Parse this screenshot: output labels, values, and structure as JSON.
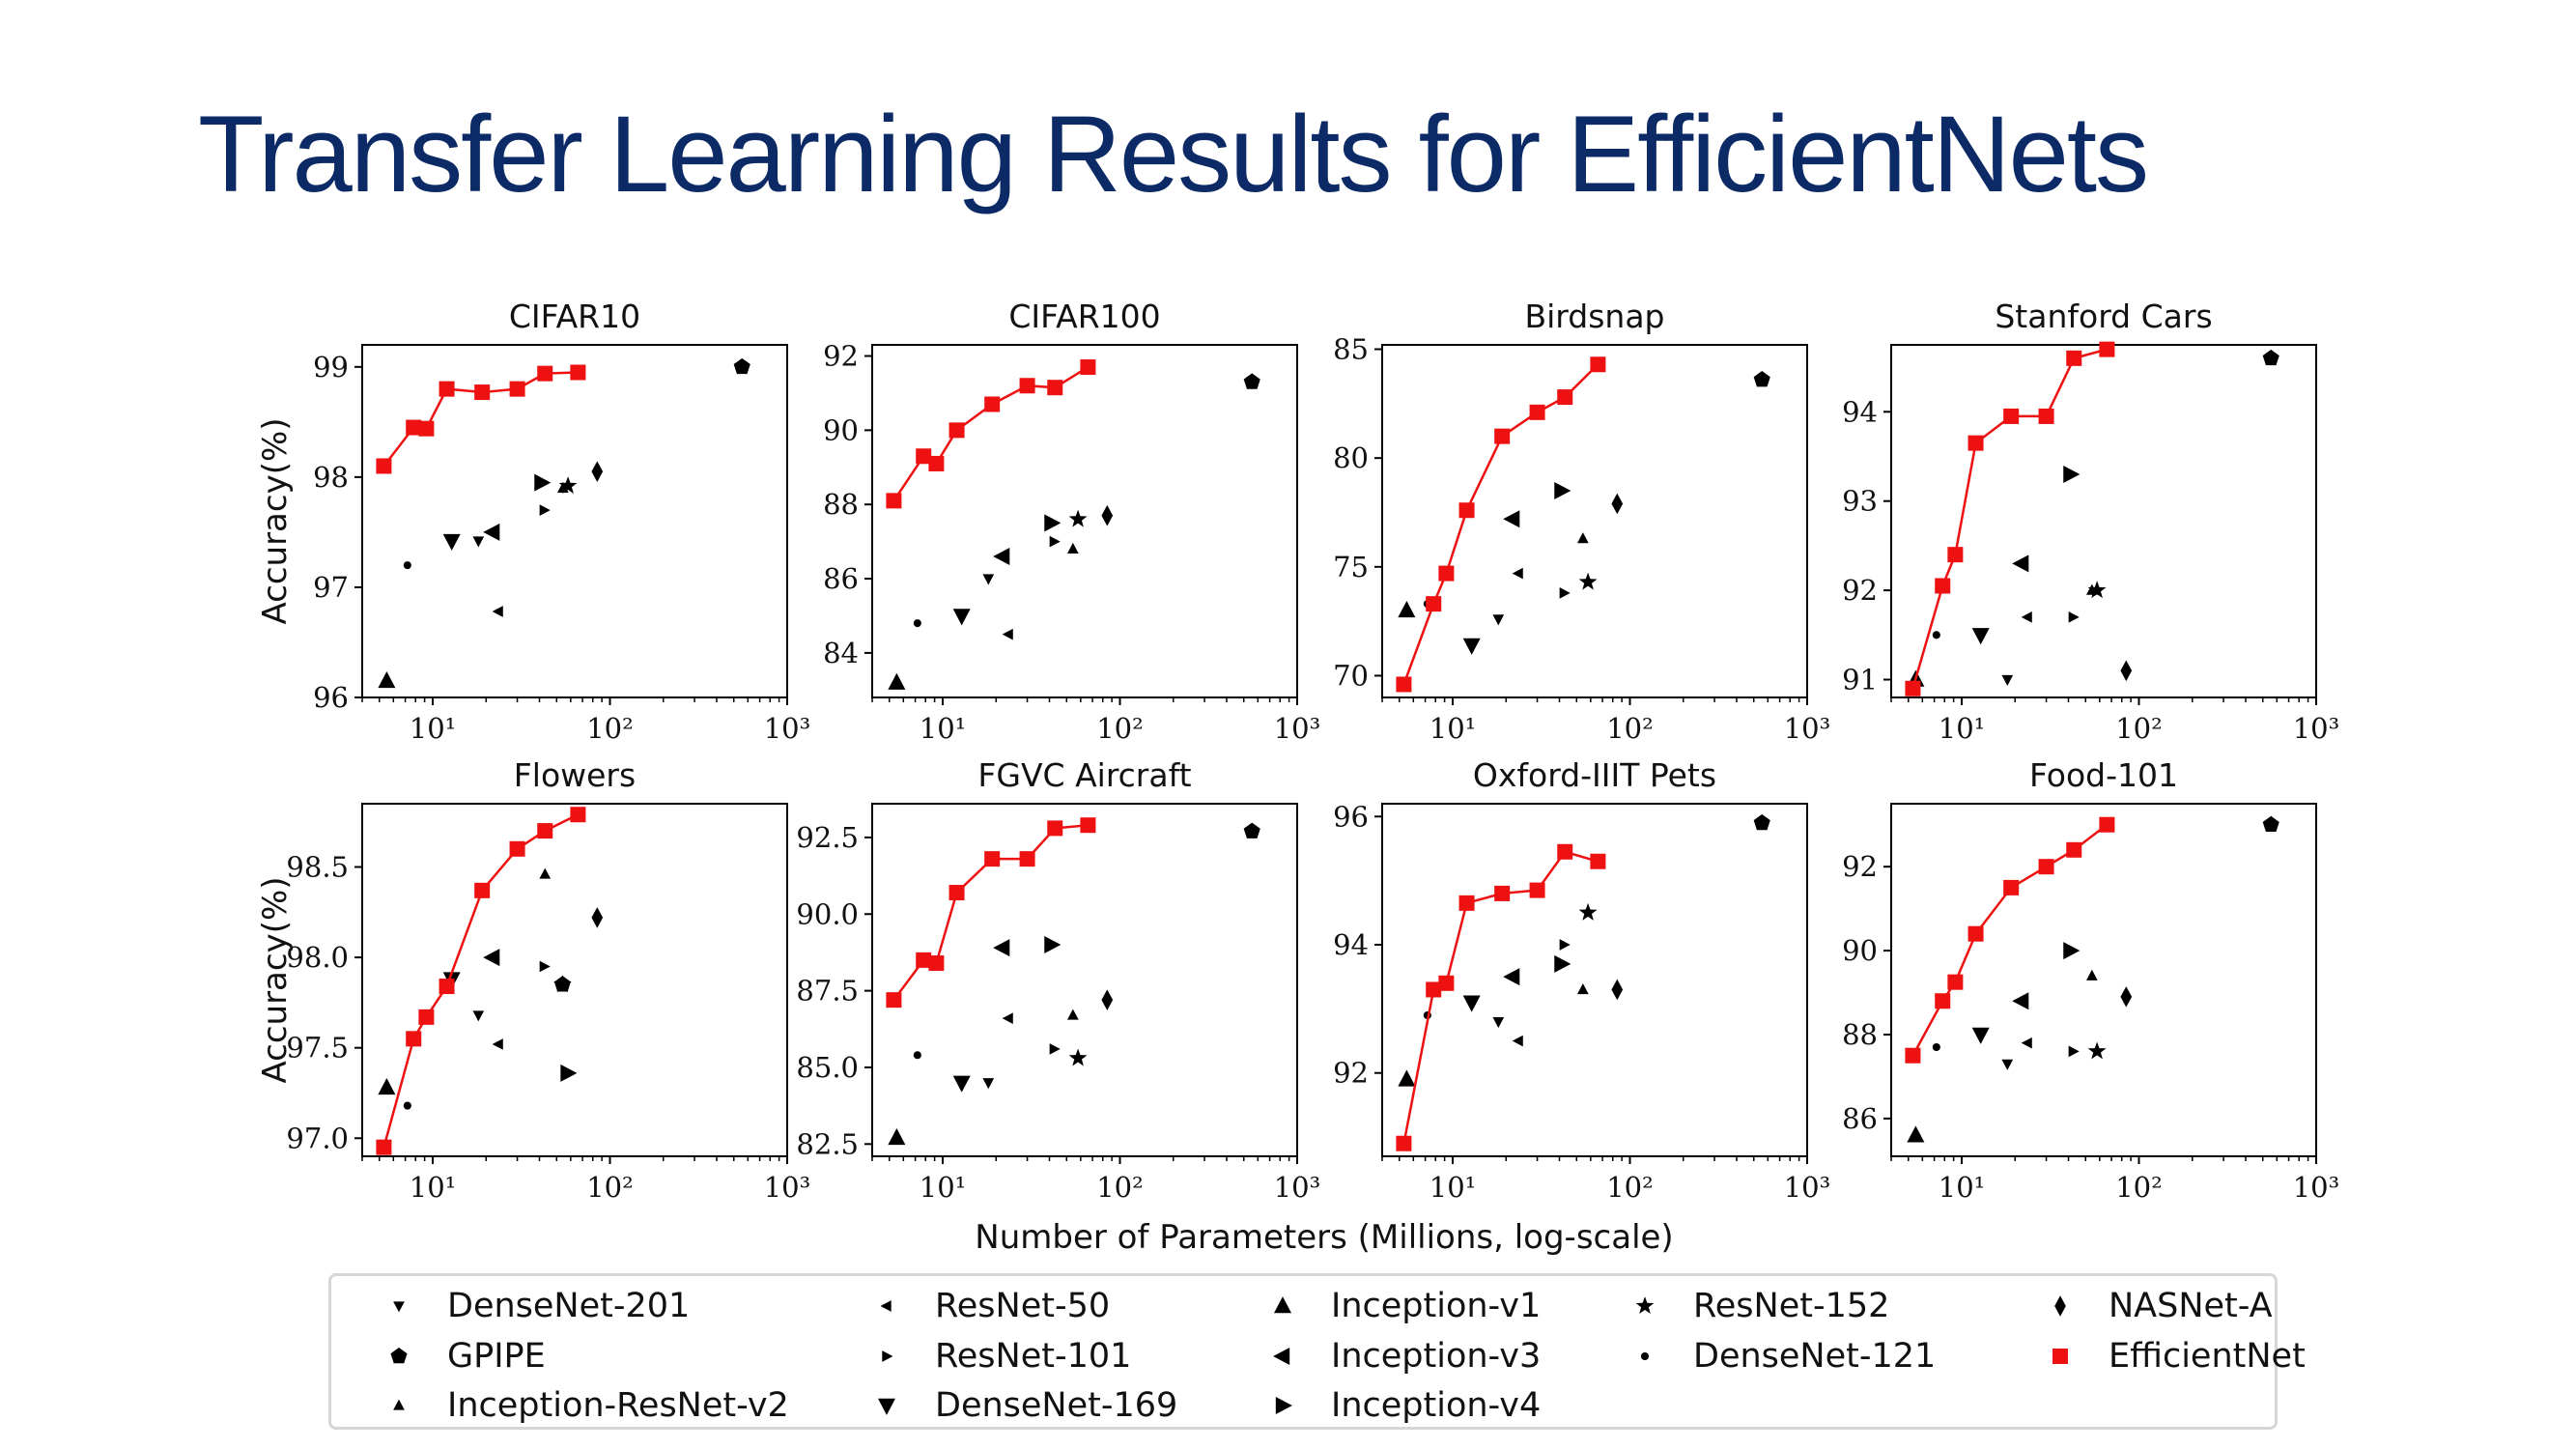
{
  "slide": {
    "title": "Transfer Learning Results for EfficientNets"
  },
  "colors": {
    "title": "#0b2a66",
    "efficientnet": "#ee1111",
    "baseline": "#000000"
  },
  "chart_data": {
    "type": "scatter",
    "xlabel": "Number of Parameters (Millions, log-scale)",
    "ylabel": "Accuracy(%)",
    "x_scale": "log",
    "legend": {
      "placement": "bottom",
      "entries": [
        {
          "name": "DenseNet-201",
          "marker": "tri-down"
        },
        {
          "name": "ResNet-50",
          "marker": "tri-left"
        },
        {
          "name": "Inception-v1",
          "marker": "triangle-up"
        },
        {
          "name": "ResNet-152",
          "marker": "star"
        },
        {
          "name": "NASNet-A",
          "marker": "diamond"
        },
        {
          "name": "GPIPE",
          "marker": "pentagon"
        },
        {
          "name": "ResNet-101",
          "marker": "tri-right"
        },
        {
          "name": "Inception-v3",
          "marker": "triangle-left"
        },
        {
          "name": "DenseNet-121",
          "marker": "point"
        },
        {
          "name": "EfficientNet",
          "marker": "square"
        },
        {
          "name": "Inception-ResNet-v2",
          "marker": "tri-up"
        },
        {
          "name": "DenseNet-169",
          "marker": "triangle-down"
        },
        {
          "name": "Inception-v4",
          "marker": "triangle-right"
        }
      ]
    },
    "efficientnet_params": [
      5.3,
      7.8,
      9.2,
      12,
      19,
      30,
      43,
      66
    ],
    "panels": [
      {
        "title": "CIFAR10",
        "xlim": [
          4,
          1000
        ],
        "ylim": [
          96.0,
          99.2
        ],
        "y_ticks": [
          96,
          97,
          98,
          99
        ],
        "y_tick_labels": [
          "96",
          "97",
          "98",
          "99"
        ],
        "x_ticks": [
          10,
          100,
          1000
        ],
        "x_tick_labels": [
          "10¹",
          "10²",
          "10³"
        ],
        "efficientnet": [
          98.1,
          98.45,
          98.44,
          98.8,
          98.77,
          98.8,
          98.94,
          98.95
        ],
        "baselines": [
          {
            "model": "Inception-v1",
            "x": 5.5,
            "y": 96.15
          },
          {
            "model": "DenseNet-121",
            "x": 7.2,
            "y": 97.2
          },
          {
            "model": "DenseNet-169",
            "x": 12.8,
            "y": 97.42
          },
          {
            "model": "DenseNet-201",
            "x": 18.1,
            "y": 97.42
          },
          {
            "model": "Inception-v3",
            "x": 21.8,
            "y": 97.5
          },
          {
            "model": "ResNet-50",
            "x": 23.5,
            "y": 96.78
          },
          {
            "model": "ResNet-101",
            "x": 42.5,
            "y": 97.7
          },
          {
            "model": "Inception-v4",
            "x": 41,
            "y": 97.95
          },
          {
            "model": "Inception-ResNet-v2",
            "x": 54.3,
            "y": 97.9
          },
          {
            "model": "ResNet-152",
            "x": 58,
            "y": 97.92
          },
          {
            "model": "NASNet-A",
            "x": 84.7,
            "y": 98.05
          },
          {
            "model": "GPIPE",
            "x": 556,
            "y": 99.0
          }
        ]
      },
      {
        "title": "CIFAR100",
        "xlim": [
          4,
          1000
        ],
        "ylim": [
          82.8,
          92.3
        ],
        "y_ticks": [
          84,
          86,
          88,
          90,
          92
        ],
        "y_tick_labels": [
          "84",
          "86",
          "88",
          "90",
          "92"
        ],
        "x_ticks": [
          10,
          100,
          1000
        ],
        "x_tick_labels": [
          "10¹",
          "10²",
          "10³"
        ],
        "efficientnet": [
          88.1,
          89.3,
          89.1,
          90.0,
          90.7,
          91.2,
          91.15,
          91.7
        ],
        "baselines": [
          {
            "model": "Inception-v1",
            "x": 5.5,
            "y": 83.2
          },
          {
            "model": "DenseNet-121",
            "x": 7.2,
            "y": 84.8
          },
          {
            "model": "DenseNet-169",
            "x": 12.8,
            "y": 85.0
          },
          {
            "model": "DenseNet-201",
            "x": 18.1,
            "y": 86.0
          },
          {
            "model": "Inception-v3",
            "x": 21.8,
            "y": 86.6
          },
          {
            "model": "ResNet-50",
            "x": 23.5,
            "y": 84.5
          },
          {
            "model": "ResNet-101",
            "x": 42.5,
            "y": 87.0
          },
          {
            "model": "Inception-v4",
            "x": 41,
            "y": 87.5
          },
          {
            "model": "Inception-ResNet-v2",
            "x": 54.3,
            "y": 86.8
          },
          {
            "model": "ResNet-152",
            "x": 58,
            "y": 87.6
          },
          {
            "model": "NASNet-A",
            "x": 84.7,
            "y": 87.7
          },
          {
            "model": "GPIPE",
            "x": 556,
            "y": 91.3
          }
        ]
      },
      {
        "title": "Birdsnap",
        "xlim": [
          4,
          1000
        ],
        "ylim": [
          69.0,
          85.2
        ],
        "y_ticks": [
          70,
          75,
          80,
          85
        ],
        "y_tick_labels": [
          "70",
          "75",
          "80",
          "85"
        ],
        "x_ticks": [
          10,
          100,
          1000
        ],
        "x_tick_labels": [
          "10¹",
          "10²",
          "10³"
        ],
        "efficientnet": [
          69.6,
          73.3,
          74.7,
          77.6,
          81.0,
          82.1,
          82.8,
          84.3
        ],
        "baselines": [
          {
            "model": "Inception-v1",
            "x": 5.5,
            "y": 73.0
          },
          {
            "model": "DenseNet-121",
            "x": 7.2,
            "y": 73.3
          },
          {
            "model": "DenseNet-169",
            "x": 12.8,
            "y": 71.4
          },
          {
            "model": "DenseNet-201",
            "x": 18.1,
            "y": 72.6
          },
          {
            "model": "Inception-v3",
            "x": 21.8,
            "y": 77.2
          },
          {
            "model": "ResNet-50",
            "x": 23.5,
            "y": 74.7
          },
          {
            "model": "ResNet-101",
            "x": 42.5,
            "y": 73.8
          },
          {
            "model": "Inception-v4",
            "x": 41,
            "y": 78.5
          },
          {
            "model": "Inception-ResNet-v2",
            "x": 54.3,
            "y": 76.3
          },
          {
            "model": "ResNet-152",
            "x": 58,
            "y": 74.3
          },
          {
            "model": "NASNet-A",
            "x": 84.7,
            "y": 77.9
          },
          {
            "model": "GPIPE",
            "x": 556,
            "y": 83.6
          }
        ]
      },
      {
        "title": "Stanford Cars",
        "xlim": [
          4,
          1000
        ],
        "ylim": [
          90.8,
          94.75
        ],
        "y_ticks": [
          91,
          92,
          93,
          94
        ],
        "y_tick_labels": [
          "91",
          "92",
          "93",
          "94"
        ],
        "x_ticks": [
          10,
          100,
          1000
        ],
        "x_tick_labels": [
          "10¹",
          "10²",
          "10³"
        ],
        "efficientnet": [
          90.9,
          92.05,
          92.4,
          93.65,
          93.95,
          93.95,
          94.6,
          94.7
        ],
        "baselines": [
          {
            "model": "Inception-v1",
            "x": 5.5,
            "y": 91.0
          },
          {
            "model": "DenseNet-121",
            "x": 7.2,
            "y": 91.5
          },
          {
            "model": "DenseNet-169",
            "x": 12.8,
            "y": 91.5
          },
          {
            "model": "DenseNet-201",
            "x": 18.1,
            "y": 91.0
          },
          {
            "model": "Inception-v3",
            "x": 21.8,
            "y": 92.3
          },
          {
            "model": "ResNet-50",
            "x": 23.5,
            "y": 91.7
          },
          {
            "model": "ResNet-101",
            "x": 42.5,
            "y": 91.7
          },
          {
            "model": "Inception-v4",
            "x": 41,
            "y": 93.3
          },
          {
            "model": "Inception-ResNet-v2",
            "x": 54.3,
            "y": 92.0
          },
          {
            "model": "ResNet-152",
            "x": 58,
            "y": 92.0
          },
          {
            "model": "NASNet-A",
            "x": 84.7,
            "y": 91.1
          },
          {
            "model": "GPIPE",
            "x": 556,
            "y": 94.6
          }
        ]
      },
      {
        "title": "Flowers",
        "xlim": [
          4,
          1000
        ],
        "ylim": [
          96.9,
          98.85
        ],
        "y_ticks": [
          97.0,
          97.5,
          98.0,
          98.5
        ],
        "y_tick_labels": [
          "97.0",
          "97.5",
          "98.0",
          "98.5"
        ],
        "x_ticks": [
          10,
          100,
          1000
        ],
        "x_tick_labels": [
          "10¹",
          "10²",
          "10³"
        ],
        "efficientnet": [
          96.95,
          97.55,
          97.67,
          97.84,
          98.37,
          98.6,
          98.7,
          98.79
        ],
        "baselines": [
          {
            "model": "Inception-v1",
            "x": 5.5,
            "y": 97.28
          },
          {
            "model": "DenseNet-121",
            "x": 7.2,
            "y": 97.18
          },
          {
            "model": "DenseNet-169",
            "x": 12.8,
            "y": 97.88
          },
          {
            "model": "DenseNet-201",
            "x": 18.1,
            "y": 97.68
          },
          {
            "model": "Inception-v3",
            "x": 21.8,
            "y": 98.0
          },
          {
            "model": "ResNet-50",
            "x": 23.5,
            "y": 97.52
          },
          {
            "model": "ResNet-101",
            "x": 42.5,
            "y": 97.95
          },
          {
            "model": "Inception-v4",
            "x": 57.6,
            "y": 97.36
          },
          {
            "model": "Inception-ResNet-v2",
            "x": 43,
            "y": 98.46
          },
          {
            "model": "ResNet-152",
            "x": 54,
            "y": 97.85
          },
          {
            "model": "NASNet-A",
            "x": 84.7,
            "y": 98.22
          },
          {
            "model": "GPIPE",
            "x": 54,
            "y": 97.85
          }
        ]
      },
      {
        "title": "FGVC Aircraft",
        "xlim": [
          4,
          1000
        ],
        "ylim": [
          82.1,
          93.6
        ],
        "y_ticks": [
          82.5,
          85.0,
          87.5,
          90.0,
          92.5
        ],
        "y_tick_labels": [
          "82.5",
          "85.0",
          "87.5",
          "90.0",
          "92.5"
        ],
        "x_ticks": [
          10,
          100,
          1000
        ],
        "x_tick_labels": [
          "10¹",
          "10²",
          "10³"
        ],
        "efficientnet": [
          87.2,
          88.5,
          88.4,
          90.7,
          91.8,
          91.8,
          92.8,
          92.9
        ],
        "baselines": [
          {
            "model": "Inception-v1",
            "x": 5.5,
            "y": 82.7
          },
          {
            "model": "DenseNet-121",
            "x": 7.2,
            "y": 85.4
          },
          {
            "model": "DenseNet-169",
            "x": 12.8,
            "y": 84.5
          },
          {
            "model": "DenseNet-201",
            "x": 18.1,
            "y": 84.5
          },
          {
            "model": "Inception-v3",
            "x": 21.8,
            "y": 88.9
          },
          {
            "model": "ResNet-50",
            "x": 23.5,
            "y": 86.6
          },
          {
            "model": "ResNet-101",
            "x": 42.5,
            "y": 85.6
          },
          {
            "model": "Inception-v4",
            "x": 41,
            "y": 89.0
          },
          {
            "model": "Inception-ResNet-v2",
            "x": 54.3,
            "y": 86.7
          },
          {
            "model": "ResNet-152",
            "x": 58,
            "y": 85.3
          },
          {
            "model": "NASNet-A",
            "x": 84.7,
            "y": 87.2
          },
          {
            "model": "GPIPE",
            "x": 556,
            "y": 92.7
          }
        ]
      },
      {
        "title": "Oxford-IIIT Pets",
        "xlim": [
          4,
          1000
        ],
        "ylim": [
          90.7,
          96.2
        ],
        "y_ticks": [
          92,
          94,
          96
        ],
        "y_tick_labels": [
          "92",
          "94",
          "96"
        ],
        "x_ticks": [
          10,
          100,
          1000
        ],
        "x_tick_labels": [
          "10¹",
          "10²",
          "10³"
        ],
        "efficientnet": [
          90.9,
          93.3,
          93.4,
          94.65,
          94.8,
          94.85,
          95.45,
          95.3
        ],
        "baselines": [
          {
            "model": "Inception-v1",
            "x": 5.5,
            "y": 91.9
          },
          {
            "model": "DenseNet-121",
            "x": 7.2,
            "y": 92.9
          },
          {
            "model": "DenseNet-169",
            "x": 12.8,
            "y": 93.1
          },
          {
            "model": "DenseNet-201",
            "x": 18.1,
            "y": 92.8
          },
          {
            "model": "Inception-v3",
            "x": 21.8,
            "y": 93.5
          },
          {
            "model": "ResNet-50",
            "x": 23.5,
            "y": 92.5
          },
          {
            "model": "ResNet-101",
            "x": 42.5,
            "y": 94.0
          },
          {
            "model": "Inception-v4",
            "x": 41,
            "y": 93.7
          },
          {
            "model": "Inception-ResNet-v2",
            "x": 54.3,
            "y": 93.3
          },
          {
            "model": "ResNet-152",
            "x": 58,
            "y": 94.5
          },
          {
            "model": "NASNet-A",
            "x": 84.7,
            "y": 93.3
          },
          {
            "model": "GPIPE",
            "x": 556,
            "y": 95.9
          }
        ]
      },
      {
        "title": "Food-101",
        "xlim": [
          4,
          1000
        ],
        "ylim": [
          85.1,
          93.5
        ],
        "y_ticks": [
          86,
          88,
          90,
          92
        ],
        "y_tick_labels": [
          "86",
          "88",
          "90",
          "92"
        ],
        "x_ticks": [
          10,
          100,
          1000
        ],
        "x_tick_labels": [
          "10¹",
          "10²",
          "10³"
        ],
        "efficientnet": [
          87.5,
          88.8,
          89.25,
          90.4,
          91.5,
          92.0,
          92.4,
          93.0
        ],
        "baselines": [
          {
            "model": "Inception-v1",
            "x": 5.5,
            "y": 85.6
          },
          {
            "model": "DenseNet-121",
            "x": 7.2,
            "y": 87.7
          },
          {
            "model": "DenseNet-169",
            "x": 12.8,
            "y": 88.0
          },
          {
            "model": "DenseNet-201",
            "x": 18.1,
            "y": 87.3
          },
          {
            "model": "Inception-v3",
            "x": 21.8,
            "y": 88.8
          },
          {
            "model": "ResNet-50",
            "x": 23.5,
            "y": 87.8
          },
          {
            "model": "ResNet-101",
            "x": 42.5,
            "y": 87.6
          },
          {
            "model": "Inception-v4",
            "x": 41,
            "y": 90.0
          },
          {
            "model": "Inception-ResNet-v2",
            "x": 54.3,
            "y": 89.4
          },
          {
            "model": "ResNet-152",
            "x": 58,
            "y": 87.6
          },
          {
            "model": "NASNet-A",
            "x": 84.7,
            "y": 88.9
          },
          {
            "model": "GPIPE",
            "x": 556,
            "y": 93.0
          }
        ]
      }
    ]
  }
}
